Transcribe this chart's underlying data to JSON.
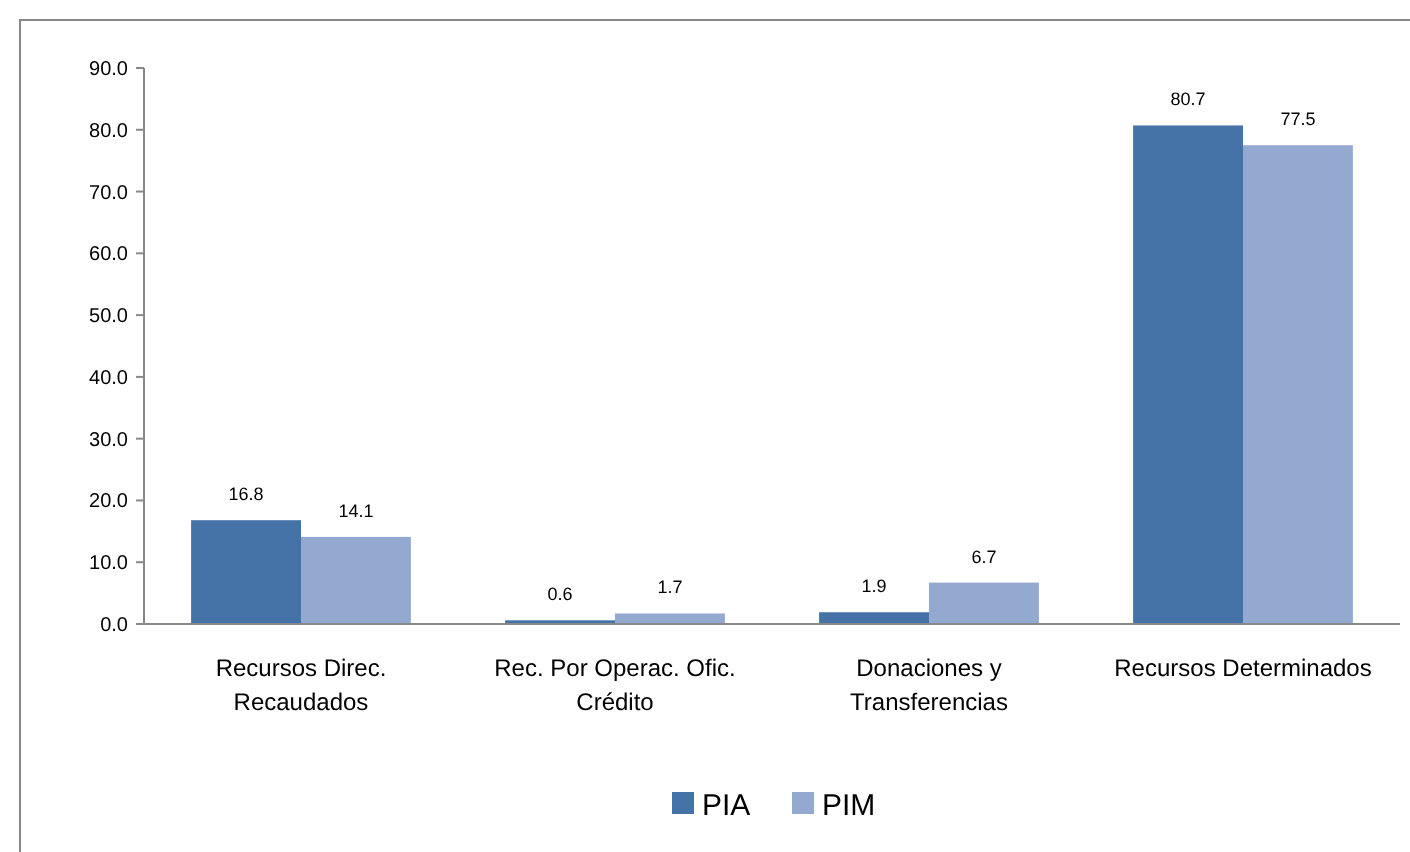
{
  "chart_data": {
    "type": "bar",
    "categories": [
      "Recursos Direc. Recaudados",
      "Rec. Por Operac. Ofic. Crédito",
      "Donaciones y Transferencias",
      "Recursos Determinados"
    ],
    "series": [
      {
        "name": "PIA",
        "color": "#4572a7",
        "values": [
          16.8,
          0.6,
          1.9,
          80.7
        ]
      },
      {
        "name": "PIM",
        "color": "#93a9cf",
        "values": [
          14.1,
          1.7,
          6.7,
          77.5
        ]
      }
    ],
    "ylim": [
      0,
      90
    ],
    "yticks": [
      {
        "value": 0,
        "label": "0.0"
      },
      {
        "value": 10,
        "label": "10.0"
      },
      {
        "value": 20,
        "label": "20.0"
      },
      {
        "value": 30,
        "label": "30.0"
      },
      {
        "value": 40,
        "label": "40.0"
      },
      {
        "value": 50,
        "label": "50.0"
      },
      {
        "value": 60,
        "label": "60.0"
      },
      {
        "value": 70,
        "label": "70.0"
      },
      {
        "value": 80,
        "label": "80.0"
      },
      {
        "value": 90,
        "label": "90.0"
      }
    ],
    "data_labels": true,
    "grid": false,
    "legend": "bottom"
  }
}
